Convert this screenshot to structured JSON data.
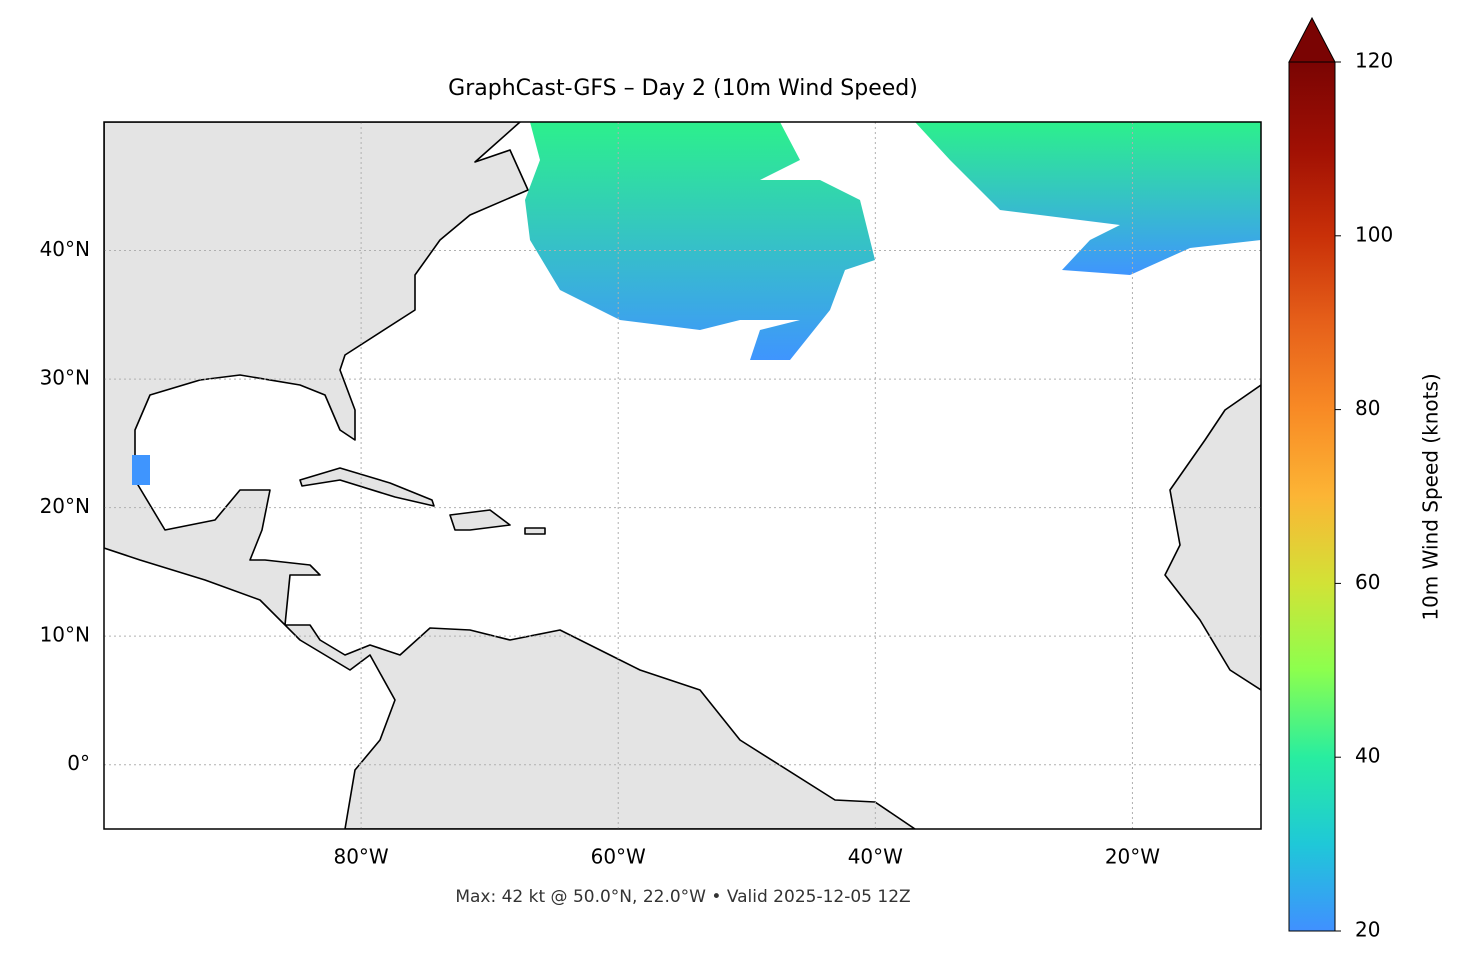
{
  "chart_data": {
    "type": "map",
    "title": "GraphCast-GFS – Day 2 (10m Wind Speed)",
    "annotation": "Max: 42 kt @ 50.0°N, 22.0°W • Valid 2025-12-05 12Z",
    "xlim": [
      -100,
      -10
    ],
    "ylim": [
      -5,
      50
    ],
    "xticks": [
      {
        "value": -80,
        "label": "80°W"
      },
      {
        "value": -60,
        "label": "60°W"
      },
      {
        "value": -40,
        "label": "40°W"
      },
      {
        "value": -20,
        "label": "20°W"
      }
    ],
    "yticks": [
      {
        "value": 0,
        "label": "0°"
      },
      {
        "value": 10,
        "label": "10°N"
      },
      {
        "value": 20,
        "label": "20°N"
      },
      {
        "value": 30,
        "label": "30°N"
      },
      {
        "value": 40,
        "label": "40°N"
      }
    ],
    "grid": true,
    "colorbar": {
      "label": "10m Wind Speed (knots)",
      "lim": [
        20,
        120
      ],
      "ticks": [
        20,
        40,
        60,
        80,
        100,
        120
      ],
      "extend": "max",
      "colors": [
        "#4090ff",
        "#1fc8d8",
        "#28eda0",
        "#8cff4e",
        "#d2e236",
        "#fcb535",
        "#f88a25",
        "#e6601a",
        "#c93008",
        "#a01004",
        "#7a0403"
      ]
    }
  }
}
